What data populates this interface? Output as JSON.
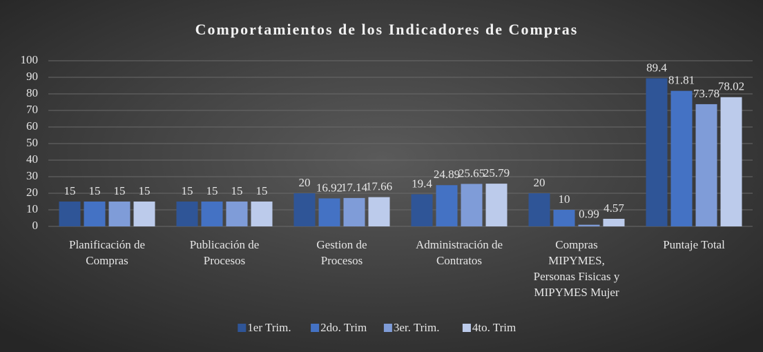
{
  "chart_data": {
    "type": "bar",
    "title": "Comportamientos de los Indicadores de Compras",
    "categories": [
      [
        "Planificación de",
        "Compras"
      ],
      [
        "Publicación de",
        "Procesos"
      ],
      [
        "Gestion de",
        "Procesos"
      ],
      [
        "Administración de",
        "Contratos"
      ],
      [
        "Compras",
        "MIPYMES,",
        "Personas Fisicas y",
        "MIPYMES Mujer"
      ],
      [
        "Puntaje Total"
      ]
    ],
    "series": [
      {
        "name": "1er Trim.",
        "color": "#2f5597",
        "values": [
          15,
          15,
          20,
          19.4,
          20,
          89.4
        ]
      },
      {
        "name": "2do. Trim",
        "color": "#4472c4",
        "values": [
          15,
          15,
          16.92,
          24.89,
          10,
          81.81
        ]
      },
      {
        "name": "3er. Trim.",
        "color": "#7f9cd8",
        "values": [
          15,
          15,
          17.14,
          25.65,
          0.99,
          73.78
        ]
      },
      {
        "name": "4to. Trim",
        "color": "#bccbeb",
        "values": [
          15,
          15,
          17.66,
          25.79,
          4.57,
          78.02
        ]
      }
    ],
    "ylim": [
      0,
      100
    ],
    "yticks": [
      0,
      10,
      20,
      30,
      40,
      50,
      60,
      70,
      80,
      90,
      100
    ],
    "grid": true,
    "legend": "bottom"
  }
}
